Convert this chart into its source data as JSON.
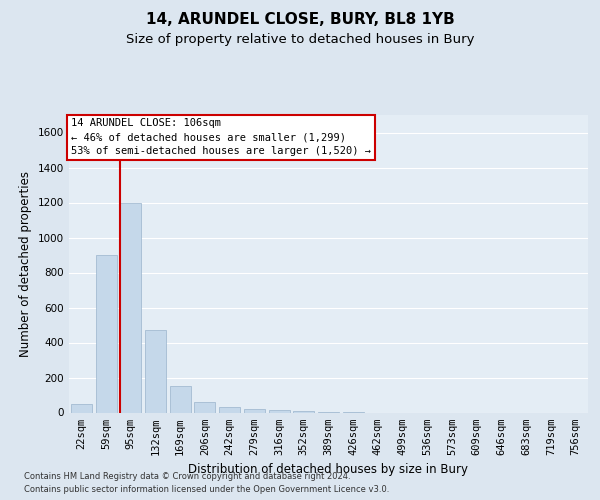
{
  "title": "14, ARUNDEL CLOSE, BURY, BL8 1YB",
  "subtitle": "Size of property relative to detached houses in Bury",
  "xlabel": "Distribution of detached houses by size in Bury",
  "ylabel": "Number of detached properties",
  "footnote1": "Contains HM Land Registry data © Crown copyright and database right 2024.",
  "footnote2": "Contains public sector information licensed under the Open Government Licence v3.0.",
  "categories": [
    "22sqm",
    "59sqm",
    "95sqm",
    "132sqm",
    "169sqm",
    "206sqm",
    "242sqm",
    "279sqm",
    "316sqm",
    "352sqm",
    "389sqm",
    "426sqm",
    "462sqm",
    "499sqm",
    "536sqm",
    "573sqm",
    "609sqm",
    "646sqm",
    "683sqm",
    "719sqm",
    "756sqm"
  ],
  "values": [
    50,
    900,
    1200,
    470,
    150,
    60,
    30,
    20,
    15,
    10,
    5,
    2,
    0,
    0,
    0,
    0,
    0,
    0,
    0,
    0,
    0
  ],
  "bar_color": "#c5d8ea",
  "bar_edgecolor": "#9ab4cc",
  "red_line_x": 1.575,
  "red_line_label": "14 ARUNDEL CLOSE: 106sqm",
  "annotation_line1": "← 46% of detached houses are smaller (1,299)",
  "annotation_line2": "53% of semi-detached houses are larger (1,520) →",
  "annotation_box_edgecolor": "#cc0000",
  "ylim": [
    0,
    1700
  ],
  "yticks": [
    0,
    200,
    400,
    600,
    800,
    1000,
    1200,
    1400,
    1600
  ],
  "bg_color": "#dce6f0",
  "plot_bg_color": "#e4edf5",
  "grid_color": "#ffffff",
  "title_fontsize": 11,
  "subtitle_fontsize": 9.5,
  "axis_label_fontsize": 8.5,
  "tick_fontsize": 7.5,
  "footnote_fontsize": 6.0
}
